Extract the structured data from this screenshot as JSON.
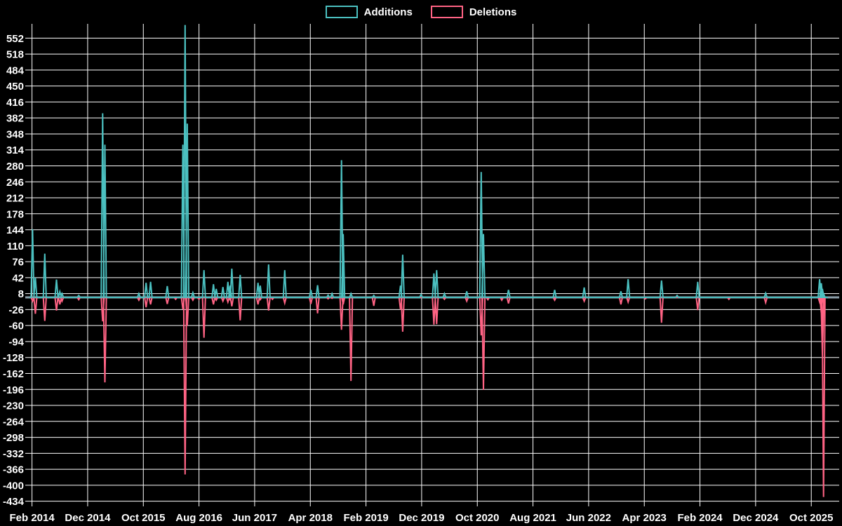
{
  "chart_data": {
    "type": "line",
    "title": "",
    "legend_position": "top",
    "grid": true,
    "series": [
      {
        "name": "Additions",
        "color": "#4bc0c0"
      },
      {
        "name": "Deletions",
        "color": "#ff6384"
      }
    ],
    "colors": {
      "background": "#000000",
      "grid": "#ffffff",
      "zero_line": "#8da0ab",
      "text": "#ffffff",
      "additions": "#4bc0c0",
      "deletions": "#ff6384"
    },
    "y_axis": {
      "ticks": [
        552,
        518,
        484,
        450,
        416,
        382,
        348,
        314,
        280,
        246,
        212,
        178,
        144,
        110,
        76,
        42,
        8,
        -26,
        -60,
        -94,
        -128,
        -162,
        -196,
        -230,
        -264,
        -298,
        -332,
        -366,
        -400,
        -434
      ],
      "step": 34
    },
    "x_axis": {
      "tick_labels": [
        "Feb 2014",
        "Dec 2014",
        "Oct 2015",
        "Aug 2016",
        "Jun 2017",
        "Apr 2018",
        "Feb 2019",
        "Dec 2019",
        "Oct 2020",
        "Aug 2021",
        "Jun 2022",
        "Apr 2023",
        "Feb 2024",
        "Dec 2024",
        "Oct 2025"
      ],
      "months_per_tick": 10,
      "start_label": "Feb 2014",
      "end_label": "Oct 2025"
    },
    "baseline_value": 0,
    "spikes_format": "[months_after_Feb_2014, additions, deletions] — all other weeks are 0/0",
    "spikes": [
      [
        0.1,
        145,
        8
      ],
      [
        0.6,
        42,
        35
      ],
      [
        2.3,
        93,
        50
      ],
      [
        4.4,
        38,
        28
      ],
      [
        5.0,
        12,
        15
      ],
      [
        5.4,
        8,
        8
      ],
      [
        8.4,
        4,
        5
      ],
      [
        12.7,
        392,
        51
      ],
      [
        13.1,
        325,
        181
      ],
      [
        19.2,
        8,
        6
      ],
      [
        20.5,
        31,
        21
      ],
      [
        21.3,
        33,
        15
      ],
      [
        24.3,
        24,
        14
      ],
      [
        25.8,
        0,
        4
      ],
      [
        27.1,
        325,
        25
      ],
      [
        27.5,
        580,
        377
      ],
      [
        27.9,
        370,
        60
      ],
      [
        28.9,
        10,
        6
      ],
      [
        30.0,
        0,
        4
      ],
      [
        30.9,
        58,
        86
      ],
      [
        32.6,
        28,
        15
      ],
      [
        33.1,
        18,
        6
      ],
      [
        34.3,
        22,
        8
      ],
      [
        35.2,
        33,
        10
      ],
      [
        35.6,
        25,
        5
      ],
      [
        35.9,
        61,
        19
      ],
      [
        37.4,
        48,
        49
      ],
      [
        40.6,
        31,
        15
      ],
      [
        41.0,
        25,
        5
      ],
      [
        42.5,
        70,
        28
      ],
      [
        43.2,
        0,
        4
      ],
      [
        45.4,
        58,
        12
      ],
      [
        50.1,
        16,
        14
      ],
      [
        51.3,
        26,
        34
      ],
      [
        53.2,
        5,
        3
      ],
      [
        53.9,
        8,
        2
      ],
      [
        55.6,
        292,
        69
      ],
      [
        55.9,
        135,
        15
      ],
      [
        57.3,
        8,
        178
      ],
      [
        61.4,
        4,
        18
      ],
      [
        66.2,
        25,
        26
      ],
      [
        66.6,
        91,
        73
      ],
      [
        69.9,
        6,
        0
      ],
      [
        72.2,
        51,
        58
      ],
      [
        72.7,
        58,
        57
      ],
      [
        74.1,
        8,
        4
      ],
      [
        78.1,
        13,
        8
      ],
      [
        80.7,
        267,
        81
      ],
      [
        81.1,
        135,
        197
      ],
      [
        81.9,
        0,
        5
      ],
      [
        84.4,
        0,
        6
      ],
      [
        85.6,
        16,
        13
      ],
      [
        93.9,
        16,
        6
      ],
      [
        99.2,
        21,
        8
      ],
      [
        105.8,
        13,
        15
      ],
      [
        107.1,
        39,
        10
      ],
      [
        110.2,
        0,
        3
      ],
      [
        113.1,
        36,
        54
      ],
      [
        115.9,
        4,
        0
      ],
      [
        119.6,
        33,
        27
      ],
      [
        125.2,
        0,
        4
      ],
      [
        131.8,
        9,
        11
      ],
      [
        141.5,
        39,
        10
      ],
      [
        141.8,
        30,
        33
      ],
      [
        142.0,
        18,
        124
      ],
      [
        142.2,
        8,
        425
      ]
    ]
  }
}
